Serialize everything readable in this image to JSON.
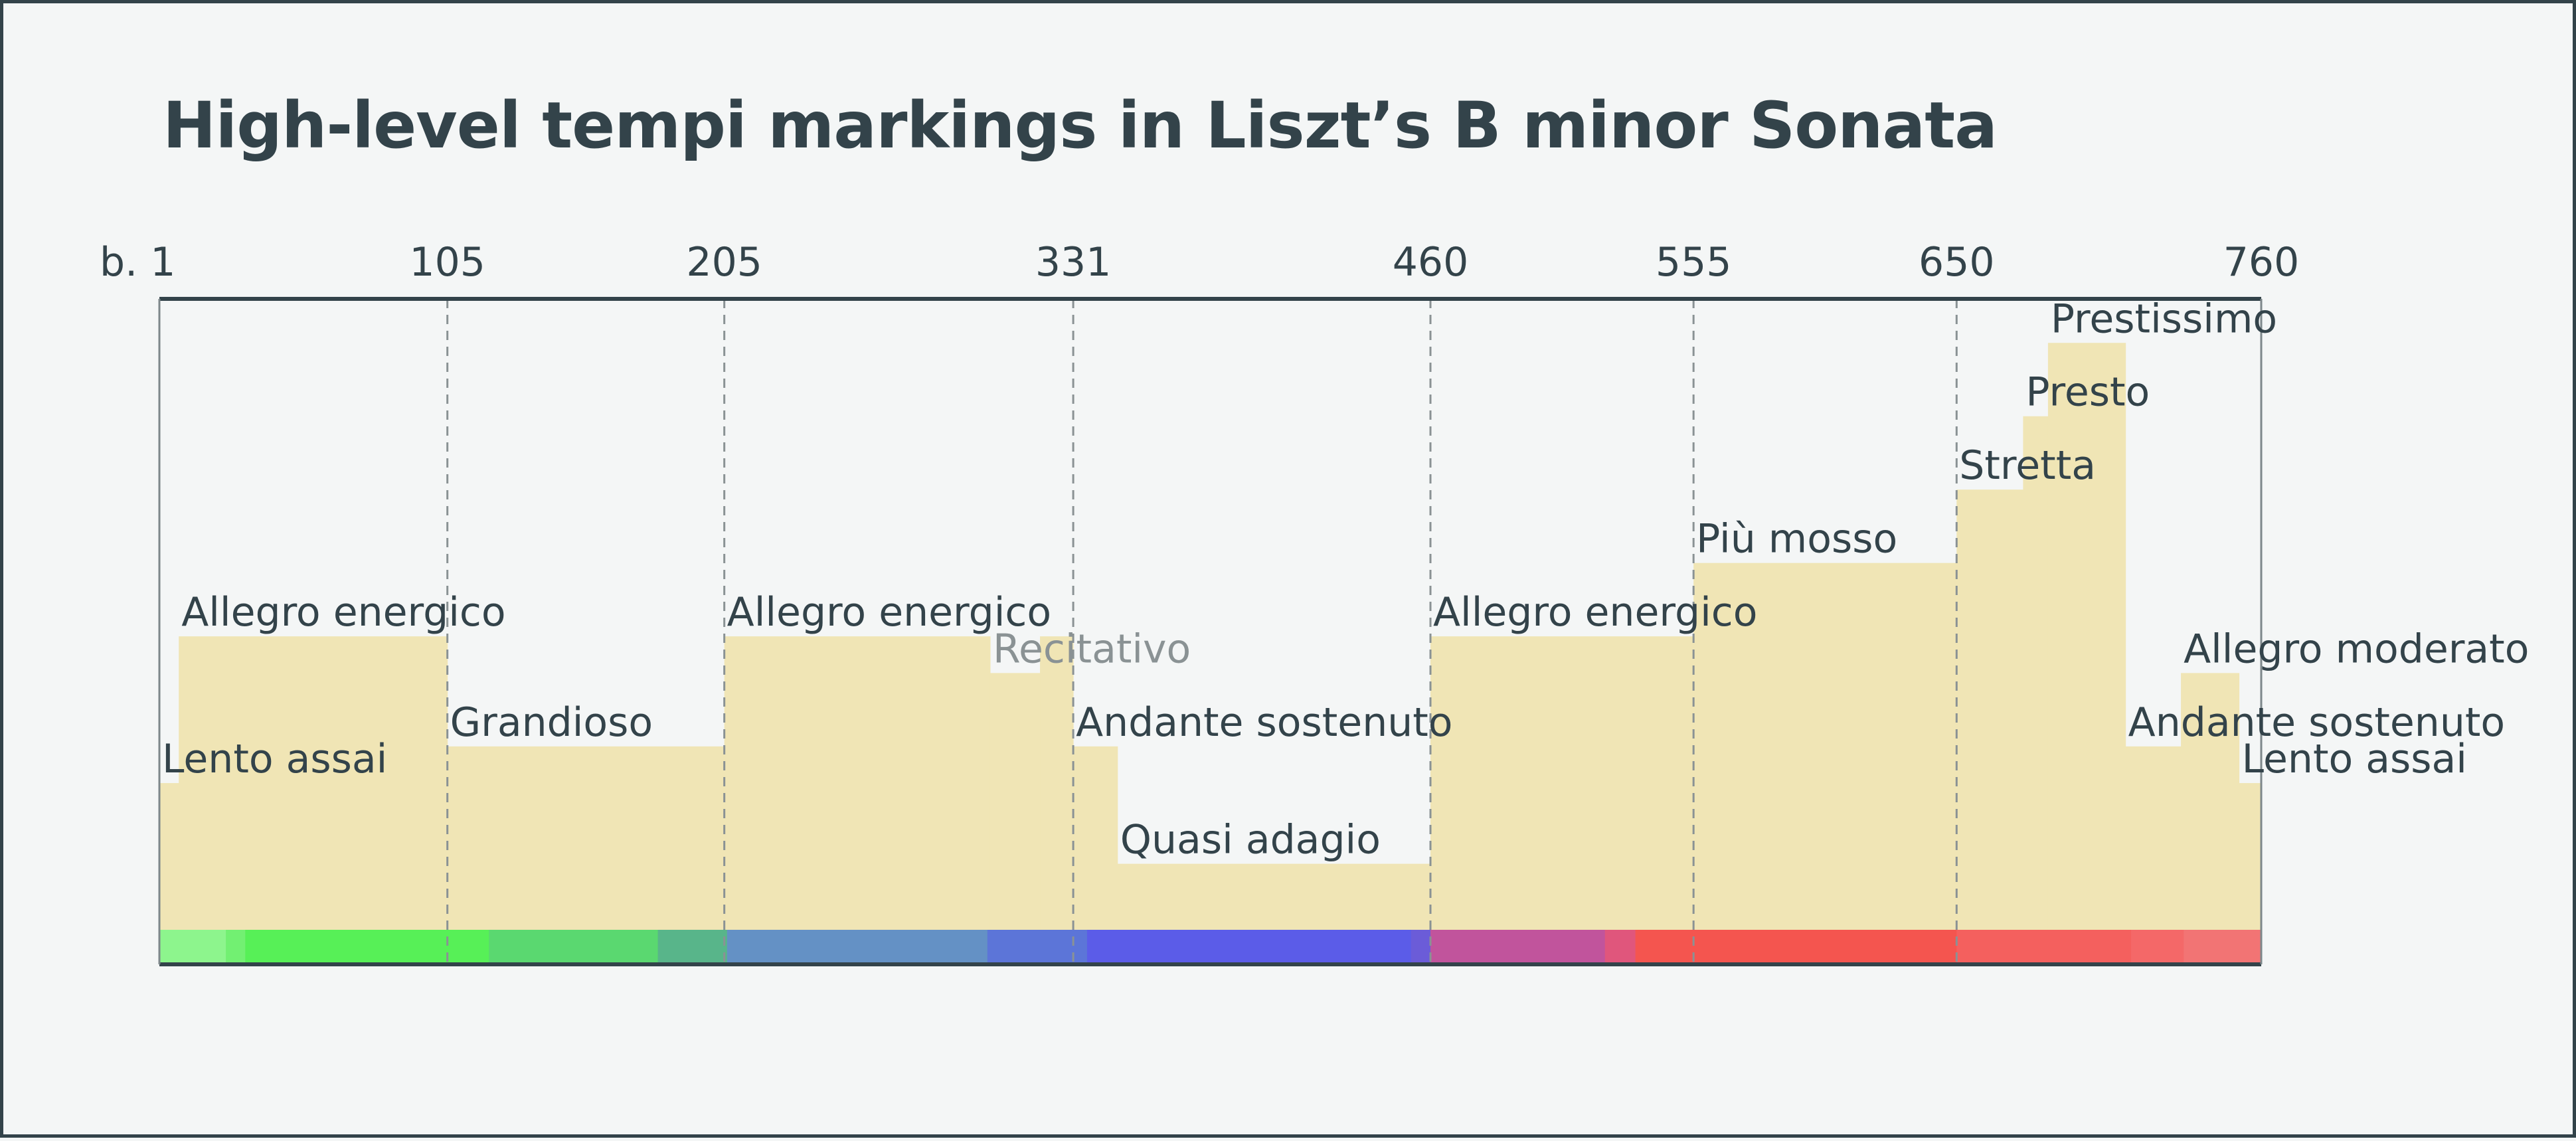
{
  "chart_data": {
    "type": "area",
    "title": "High-level tempi markings in Liszt’s B minor Sonata",
    "xlabel": "",
    "ylabel": "",
    "xlim": [
      1,
      760
    ],
    "ylim": [
      0,
      8.6
    ],
    "grid": false,
    "x_ticks": [
      {
        "value": 1,
        "label": "b. 1"
      },
      {
        "value": 105,
        "label": "105"
      },
      {
        "value": 205,
        "label": "205"
      },
      {
        "value": 331,
        "label": "331"
      },
      {
        "value": 460,
        "label": "460"
      },
      {
        "value": 555,
        "label": "555"
      },
      {
        "value": 650,
        "label": "650"
      },
      {
        "value": 760,
        "label": "760"
      }
    ],
    "section_lines": [
      105,
      205,
      331,
      460,
      555,
      650
    ],
    "segments": [
      {
        "label": "Lento assai",
        "start": 1,
        "end": 8,
        "level": 2
      },
      {
        "label": "Allegro energico",
        "start": 8,
        "end": 105,
        "level": 4
      },
      {
        "label": "Grandioso",
        "start": 105,
        "end": 205,
        "level": 2.5
      },
      {
        "label": "Allegro energico",
        "start": 205,
        "end": 301,
        "level": 4
      },
      {
        "label": "Recitativo",
        "start": 301,
        "end": 319,
        "level": 3.5,
        "muted": true
      },
      {
        "label": "",
        "start": 319,
        "end": 331,
        "level": 4
      },
      {
        "label": "Andante sostenuto",
        "start": 331,
        "end": 347,
        "level": 2.5
      },
      {
        "label": "Quasi adagio",
        "start": 347,
        "end": 460,
        "level": 0.9
      },
      {
        "label": "Allegro energico",
        "start": 460,
        "end": 555,
        "level": 4
      },
      {
        "label": "Più mosso",
        "start": 555,
        "end": 650,
        "level": 5
      },
      {
        "label": "Stretta",
        "start": 650,
        "end": 674,
        "level": 6
      },
      {
        "label": "Presto",
        "start": 674,
        "end": 683,
        "level": 7
      },
      {
        "label": "Prestissimo",
        "start": 683,
        "end": 711,
        "level": 8
      },
      {
        "label": "Andante sostenuto",
        "start": 711,
        "end": 731,
        "level": 2.5
      },
      {
        "label": "Allegro moderato",
        "start": 731,
        "end": 752,
        "level": 3.5
      },
      {
        "label": "Lento assai",
        "start": 752,
        "end": 760,
        "level": 2
      }
    ],
    "key_bar": [
      {
        "start": 1,
        "end": 25,
        "color": "#8df58d"
      },
      {
        "start": 25,
        "end": 32,
        "color": "#72f072"
      },
      {
        "start": 32,
        "end": 120,
        "color": "#57f057"
      },
      {
        "start": 120,
        "end": 181,
        "color": "#5ad870"
      },
      {
        "start": 181,
        "end": 206,
        "color": "#58b58a"
      },
      {
        "start": 206,
        "end": 300,
        "color": "#6491c5"
      },
      {
        "start": 300,
        "end": 336,
        "color": "#5c75d8"
      },
      {
        "start": 336,
        "end": 453,
        "color": "#5b5ce8"
      },
      {
        "start": 453,
        "end": 460,
        "color": "#6b5cd8"
      },
      {
        "start": 460,
        "end": 523,
        "color": "#c1549c"
      },
      {
        "start": 523,
        "end": 534,
        "color": "#e0567c"
      },
      {
        "start": 534,
        "end": 650,
        "color": "#f4554f"
      },
      {
        "start": 650,
        "end": 713,
        "color": "#f4605e"
      },
      {
        "start": 713,
        "end": 732,
        "color": "#f46868"
      },
      {
        "start": 732,
        "end": 760,
        "color": "#f27474"
      }
    ],
    "colors": {
      "fill": "#f0e5b5",
      "axis": "#33434a",
      "section_line": "#8a9294",
      "text": "#33434a",
      "muted_text": "#8a9294",
      "background": "#f4f6f6"
    }
  }
}
